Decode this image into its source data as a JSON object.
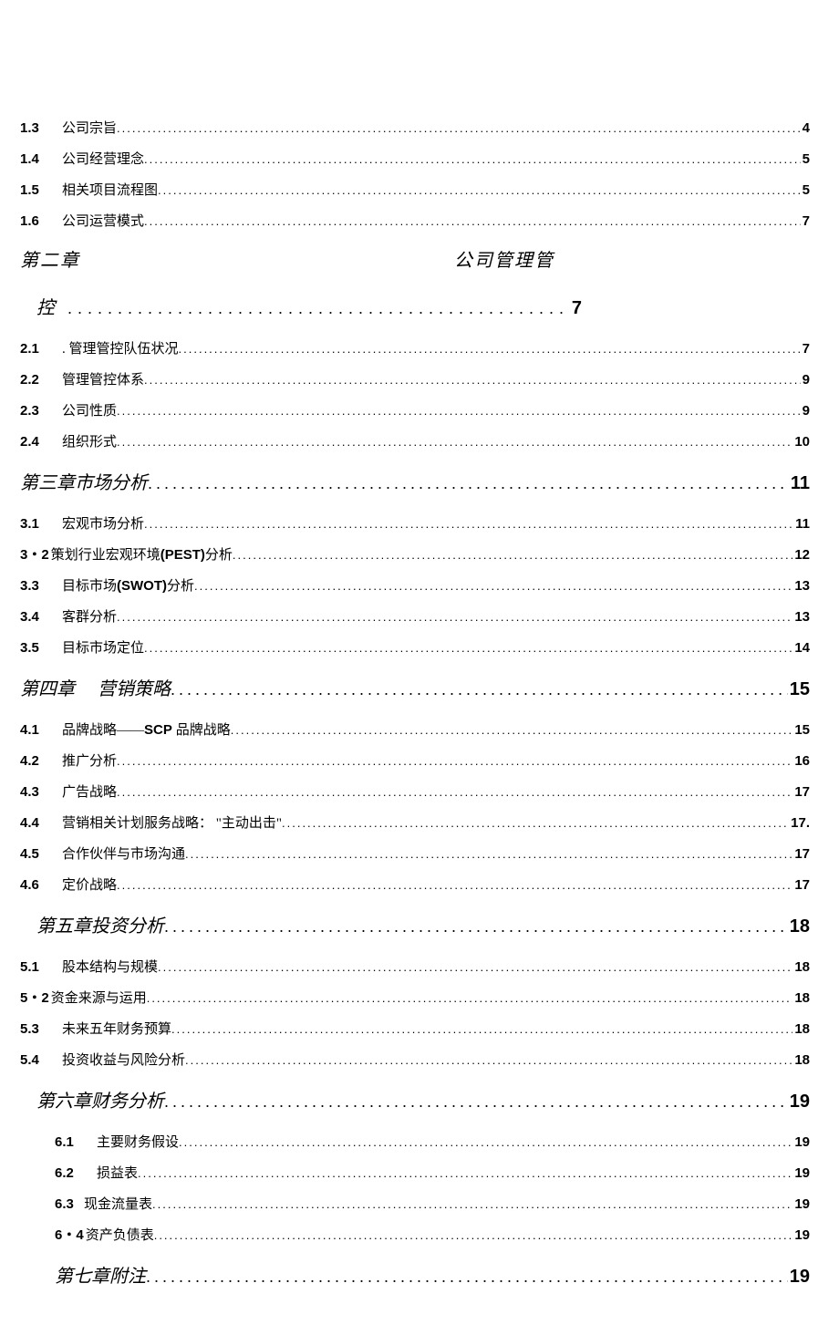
{
  "text_color": "#000000",
  "background_color": "#ffffff",
  "fonts": {
    "number_font": "Arial",
    "body_font": "SimSun",
    "chapter_font": "KaiTi"
  },
  "entries": [
    {
      "type": "item",
      "num": "1.3",
      "title": "公司宗旨",
      "page": "4",
      "indent": 0
    },
    {
      "type": "item",
      "num": "1.4",
      "title": "公司经营理念",
      "page": "5",
      "indent": 0
    },
    {
      "type": "item",
      "num": "1.5",
      "title": "相关项目流程图",
      "page": "5",
      "indent": 0
    },
    {
      "type": "item",
      "num": "1.6",
      "title": "公司运营模式",
      "page": "7",
      "indent": 0
    },
    {
      "type": "chapter2",
      "left": "第二章",
      "right": "公司管理管",
      "title2": "控",
      "page": "7"
    },
    {
      "type": "item",
      "num": "2.1",
      "title": ". 管理管控队伍状况",
      "page": "7",
      "indent": 0
    },
    {
      "type": "item",
      "num": "2.2",
      "title": "管理管控体系",
      "page": "9",
      "indent": 0
    },
    {
      "type": "item",
      "num": "2.3",
      "title": "公司性质",
      "page": "9",
      "indent": 0
    },
    {
      "type": "item",
      "num": "2.4",
      "title": "组织形式",
      "page": "10",
      "indent": 0
    },
    {
      "type": "chapter",
      "title": "第三章市场分析",
      "page": "11",
      "indent": 0
    },
    {
      "type": "item",
      "num": "3.1",
      "title": "宏观市场分析",
      "page": "11",
      "indent": 0
    },
    {
      "type": "item-mixed",
      "num": "3・2",
      "title_parts": [
        {
          "t": " 策划行业宏观环境",
          "bold": false
        },
        {
          "t": "(PEST)",
          "bold": true
        },
        {
          "t": "分析",
          "bold": false
        }
      ],
      "page": "12",
      "indent": 0
    },
    {
      "type": "item-mixed",
      "num": "3.3",
      "title_parts": [
        {
          "t": "目标市场",
          "bold": false
        },
        {
          "t": "(SWOT)",
          "bold": true
        },
        {
          "t": "分析",
          "bold": false
        }
      ],
      "page": "13",
      "indent": 0,
      "gap": true
    },
    {
      "type": "item",
      "num": "3.4",
      "title": "客群分析",
      "page": "13",
      "indent": 0
    },
    {
      "type": "item",
      "num": "3.5",
      "title": "目标市场定位",
      "page": "14",
      "indent": 0
    },
    {
      "type": "chapter",
      "title": "第四章　 营销策略",
      "page": "15",
      "indent": 0
    },
    {
      "type": "item-mixed",
      "num": "4.1",
      "title_parts": [
        {
          "t": "品牌战略——",
          "bold": false
        },
        {
          "t": "SCP ",
          "bold": true
        },
        {
          "t": "品牌战略",
          "bold": false
        }
      ],
      "page": "15",
      "indent": 0,
      "gap": true
    },
    {
      "type": "item",
      "num": "4.2",
      "title": "推广分析",
      "page": "16",
      "indent": 0
    },
    {
      "type": "item",
      "num": "4.3",
      "title": "广告战略",
      "page": "17",
      "indent": 0
    },
    {
      "type": "item",
      "num": "4.4",
      "title": "营销相关计划服务战略： \"主动出击\"",
      "page": "17.",
      "indent": 0
    },
    {
      "type": "item",
      "num": "4.5",
      "title": "合作伙伴与市场沟通",
      "page": "17",
      "indent": 0
    },
    {
      "type": "item",
      "num": "4.6",
      "title": "定价战略",
      "page": "17",
      "indent": 0
    },
    {
      "type": "chapter",
      "title": "第五章投资分析",
      "page": "18",
      "indent": 1
    },
    {
      "type": "item",
      "num": "5.1",
      "title": "股本结构与规模",
      "page": "18",
      "indent": 0
    },
    {
      "type": "item-nogap",
      "num": "5・2",
      "title": " 资金来源与运用",
      "page": "18",
      "indent": 0
    },
    {
      "type": "item",
      "num": "5.3",
      "title": "未来五年财务预算",
      "page": "18",
      "indent": 0
    },
    {
      "type": "item",
      "num": "5.4",
      "title": "投资收益与风险分析",
      "page": "18",
      "indent": 0
    },
    {
      "type": "chapter",
      "title": "第六章财务分析",
      "page": "19",
      "indent": 1
    },
    {
      "type": "item",
      "num": "6.1",
      "title": "主要财务假设",
      "page": "19",
      "indent": 2
    },
    {
      "type": "item",
      "num": "6.2",
      "title": "损益表",
      "page": "19",
      "indent": 2
    },
    {
      "type": "item-nogap",
      "num": "6.3",
      "title": " 现金流量表",
      "page": "19",
      "indent": 2
    },
    {
      "type": "item-nogap",
      "num": "6・4",
      "title": " 资产负债表",
      "page": "19",
      "indent": 2
    },
    {
      "type": "chapter",
      "title": "第七章附注",
      "page": "19",
      "indent": 2
    }
  ]
}
